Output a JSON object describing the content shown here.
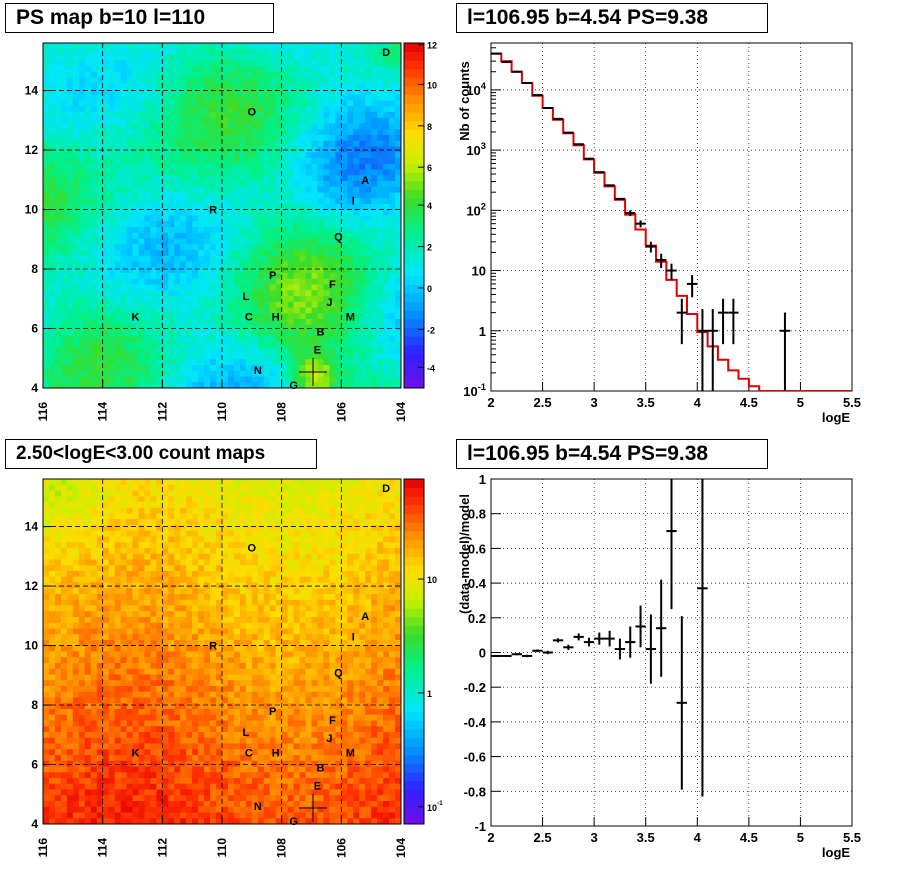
{
  "chart_data": [
    {
      "type": "heatmap",
      "title": "PS map b=10 l=110",
      "xlabel": "",
      "ylabel": "",
      "xlim": [
        116,
        104
      ],
      "ylim": [
        4,
        15.6
      ],
      "x_ticks": [
        "116",
        "114",
        "112",
        "110",
        "108",
        "106",
        "104"
      ],
      "y_ticks": [
        "4",
        "6",
        "8",
        "10",
        "12",
        "14"
      ],
      "grid": true,
      "colorbar": {
        "range": [
          -5,
          12
        ],
        "ticks": [
          "-4",
          "-2",
          "0",
          "2",
          "4",
          "6",
          "8",
          "10",
          "12"
        ]
      },
      "annotations": [
        {
          "label": "D",
          "l": 104.5,
          "b": 15.3
        },
        {
          "label": "O",
          "l": 109.0,
          "b": 13.3
        },
        {
          "label": "A",
          "l": 105.2,
          "b": 11.0
        },
        {
          "label": "I",
          "l": 105.6,
          "b": 10.3
        },
        {
          "label": "R",
          "l": 110.3,
          "b": 10.0
        },
        {
          "label": "Q",
          "l": 106.1,
          "b": 9.1
        },
        {
          "label": "P",
          "l": 108.3,
          "b": 7.8
        },
        {
          "label": "F",
          "l": 106.3,
          "b": 7.5
        },
        {
          "label": "L",
          "l": 109.2,
          "b": 7.1
        },
        {
          "label": "J",
          "l": 106.4,
          "b": 6.9
        },
        {
          "label": "K",
          "l": 112.9,
          "b": 6.4
        },
        {
          "label": "C",
          "l": 109.1,
          "b": 6.4
        },
        {
          "label": "H",
          "l": 108.2,
          "b": 6.4
        },
        {
          "label": "M",
          "l": 105.7,
          "b": 6.4
        },
        {
          "label": "B",
          "l": 106.7,
          "b": 5.9
        },
        {
          "label": "E",
          "l": 106.8,
          "b": 5.3
        },
        {
          "label": "N",
          "l": 108.8,
          "b": 4.6
        },
        {
          "label": "G",
          "l": 107.6,
          "b": 4.1
        }
      ],
      "marker": {
        "l": 106.95,
        "b": 4.54
      }
    },
    {
      "type": "line",
      "title": "l=106.95 b=4.54 PS=9.38",
      "xlabel": "logE",
      "ylabel": "Nb of counts",
      "xlim": [
        2,
        5.5
      ],
      "ylim": [
        0.1,
        60000
      ],
      "y_scale": "log",
      "x_ticks": [
        "2",
        "2.5",
        "3",
        "3.5",
        "4",
        "4.5",
        "5",
        "5.5"
      ],
      "y_ticks": [
        "10^-1",
        "1",
        "10",
        "10^2",
        "10^3",
        "10^4"
      ],
      "grid": true,
      "series": [
        {
          "kind": "model_step",
          "color": "#e00000",
          "x_edges": [
            2.0,
            2.1,
            2.2,
            2.3,
            2.4,
            2.5,
            2.6,
            2.7,
            2.8,
            2.9,
            3.0,
            3.1,
            3.2,
            3.3,
            3.4,
            3.5,
            3.6,
            3.7,
            3.8,
            3.9,
            4.0,
            4.1,
            4.2,
            4.3,
            4.4,
            4.5,
            4.6,
            4.7,
            4.8,
            4.9,
            5.0,
            5.1,
            5.2,
            5.3,
            5.4,
            5.5
          ],
          "values": [
            40000,
            30000,
            20000,
            13000,
            8000,
            5000,
            3200,
            1900,
            1200,
            700,
            420,
            250,
            150,
            85,
            48,
            26,
            14,
            7,
            3.8,
            1.9,
            0.95,
            0.55,
            0.33,
            0.22,
            0.16,
            0.12,
            0.1,
            0.1,
            0.1,
            0.1,
            0.1,
            0.1,
            0.1,
            0.1,
            0.1
          ]
        },
        {
          "kind": "data_points",
          "color": "#000000",
          "points": [
            {
              "x": 2.05,
              "y": 40000,
              "err": [
                0,
                0
              ]
            },
            {
              "x": 2.15,
              "y": 29000,
              "err": [
                0,
                0
              ]
            },
            {
              "x": 2.25,
              "y": 20000,
              "err": [
                0,
                0
              ]
            },
            {
              "x": 2.35,
              "y": 13000,
              "err": [
                0,
                0
              ]
            },
            {
              "x": 2.45,
              "y": 8200,
              "err": [
                0,
                0
              ]
            },
            {
              "x": 2.55,
              "y": 5000,
              "err": [
                0,
                0
              ]
            },
            {
              "x": 2.65,
              "y": 3300,
              "err": [
                0,
                0
              ]
            },
            {
              "x": 2.75,
              "y": 1950,
              "err": [
                0,
                0
              ]
            },
            {
              "x": 2.85,
              "y": 1250,
              "err": [
                0,
                0
              ]
            },
            {
              "x": 2.95,
              "y": 720,
              "err": [
                0,
                0
              ]
            },
            {
              "x": 3.05,
              "y": 430,
              "err": [
                0,
                0
              ]
            },
            {
              "x": 3.15,
              "y": 260,
              "err": [
                0,
                0
              ]
            },
            {
              "x": 3.25,
              "y": 155,
              "err": [
                0,
                0
              ]
            },
            {
              "x": 3.35,
              "y": 90,
              "err": [
                10,
                10
              ]
            },
            {
              "x": 3.45,
              "y": 60,
              "err": [
                8,
                8
              ]
            },
            {
              "x": 3.55,
              "y": 25,
              "err": [
                5,
                5
              ]
            },
            {
              "x": 3.65,
              "y": 15,
              "err": [
                4,
                4
              ]
            },
            {
              "x": 3.75,
              "y": 10,
              "err": [
                3,
                3
              ]
            },
            {
              "x": 3.85,
              "y": 2,
              "err": [
                1.4,
                1.4
              ]
            },
            {
              "x": 3.95,
              "y": 6,
              "err": [
                2.4,
                2.4
              ]
            },
            {
              "x": 4.05,
              "y": 1,
              "err": [
                0.9,
                1.3
              ]
            },
            {
              "x": 4.15,
              "y": 1,
              "err": [
                0.9,
                1.3
              ]
            },
            {
              "x": 4.25,
              "y": 2,
              "err": [
                1.4,
                1.4
              ]
            },
            {
              "x": 4.35,
              "y": 2,
              "err": [
                1.4,
                1.4
              ]
            },
            {
              "x": 4.85,
              "y": 1,
              "err": [
                0.9,
                1.0
              ]
            }
          ]
        }
      ]
    },
    {
      "type": "heatmap",
      "title": "2.50<logE<3.00 count maps",
      "xlabel": "",
      "ylabel": "",
      "xlim": [
        116,
        104
      ],
      "ylim": [
        4,
        15.6
      ],
      "x_ticks": [
        "116",
        "114",
        "112",
        "110",
        "108",
        "106",
        "104"
      ],
      "y_ticks": [
        "4",
        "6",
        "8",
        "10",
        "12",
        "14"
      ],
      "grid": true,
      "colorbar": {
        "scale": "log",
        "ticks": [
          "10",
          "1",
          "10^-1"
        ]
      }
    },
    {
      "type": "scatter",
      "title": "l=106.95 b=4.54 PS=9.38",
      "xlabel": "logE",
      "ylabel": "(data-model)/model",
      "xlim": [
        2,
        5.5
      ],
      "ylim": [
        -1,
        1
      ],
      "x_ticks": [
        "2",
        "2.5",
        "3",
        "3.5",
        "4",
        "4.5",
        "5",
        "5.5"
      ],
      "y_ticks": [
        "-1",
        "-0.8",
        "-0.6",
        "-0.4",
        "-0.2",
        "0",
        "0.2",
        "0.4",
        "0.6",
        "0.8",
        "1"
      ],
      "grid": true,
      "points": [
        {
          "x": 2.05,
          "y": -0.02,
          "err": 0.005
        },
        {
          "x": 2.15,
          "y": -0.02,
          "err": 0.005
        },
        {
          "x": 2.25,
          "y": -0.01,
          "err": 0.006
        },
        {
          "x": 2.35,
          "y": -0.02,
          "err": 0.007
        },
        {
          "x": 2.45,
          "y": 0.01,
          "err": 0.008
        },
        {
          "x": 2.55,
          "y": 0.0,
          "err": 0.01
        },
        {
          "x": 2.65,
          "y": 0.07,
          "err": 0.012
        },
        {
          "x": 2.75,
          "y": 0.03,
          "err": 0.015
        },
        {
          "x": 2.85,
          "y": 0.09,
          "err": 0.02
        },
        {
          "x": 2.95,
          "y": 0.06,
          "err": 0.025
        },
        {
          "x": 3.05,
          "y": 0.08,
          "err": 0.035
        },
        {
          "x": 3.15,
          "y": 0.08,
          "err": 0.045
        },
        {
          "x": 3.25,
          "y": 0.02,
          "err": 0.06
        },
        {
          "x": 3.35,
          "y": 0.06,
          "err": 0.09
        },
        {
          "x": 3.45,
          "y": 0.15,
          "err": 0.12
        },
        {
          "x": 3.55,
          "y": 0.02,
          "err": 0.2
        },
        {
          "x": 3.65,
          "y": 0.14,
          "err": 0.28
        },
        {
          "x": 3.75,
          "y": 0.7,
          "err": 0.45
        },
        {
          "x": 3.85,
          "y": -0.29,
          "err": 0.5
        },
        {
          "x": 4.05,
          "y": 0.37,
          "err": 1.2
        }
      ]
    }
  ]
}
